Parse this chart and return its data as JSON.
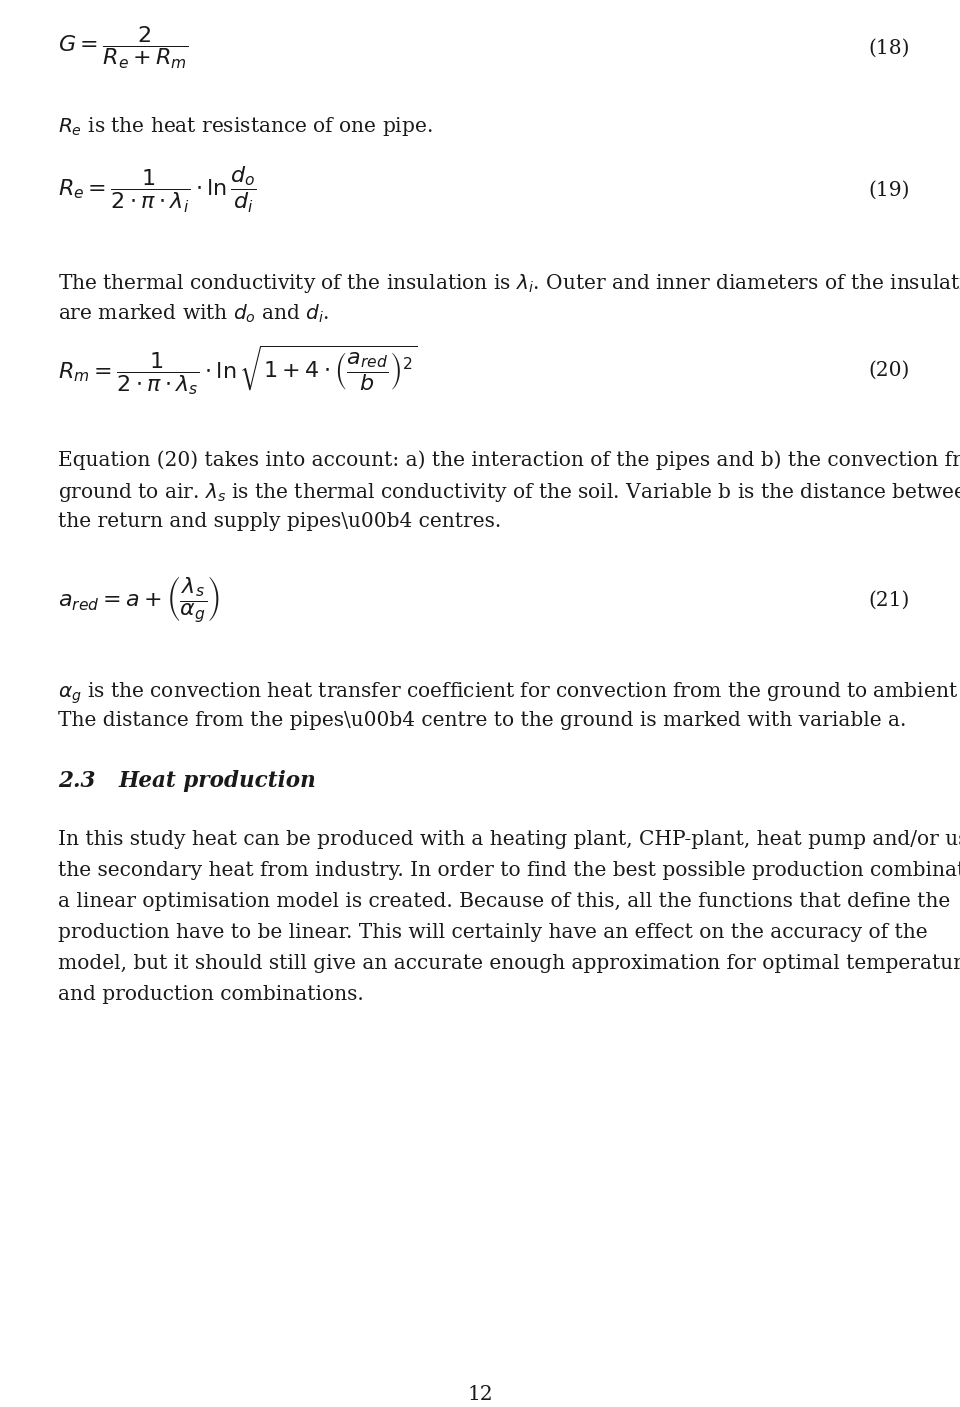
{
  "background_color": "#ffffff",
  "text_color": "#1a1a1a",
  "page_number": "12",
  "eq18_label": "(18)",
  "eq19_label": "(19)",
  "eq20_label": "(20)",
  "eq21_label": "(21)",
  "section_heading": "2.3",
  "section_heading2": "Heat production",
  "body_lines": [
    "In this study heat can be produced with a heating plant, CHP-plant, heat pump and/or using",
    "the secondary heat from industry. In order to find the best possible production combination",
    "a linear optimisation model is created. Because of this, all the functions that define the",
    "production have to be linear. This will certainly have an effect on the accuracy of the",
    "model, but it should still give an accurate enough approximation for optimal temperatures",
    "and production combinations."
  ]
}
